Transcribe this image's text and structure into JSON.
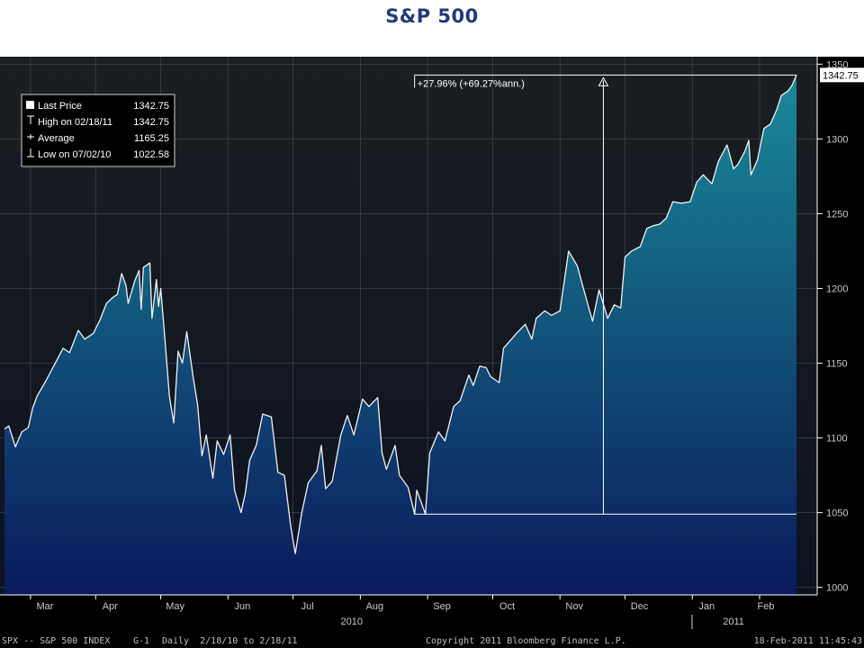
{
  "page": {
    "title": "S&P 500"
  },
  "legend": {
    "rows": [
      {
        "icon": "square-icon",
        "label": "Last Price",
        "value": "1342.75"
      },
      {
        "icon": "high-marker-icon",
        "label": "High on 02/18/11",
        "value": "1342.75"
      },
      {
        "icon": "average-marker-icon",
        "label": "Average",
        "value": "1165.25"
      },
      {
        "icon": "low-marker-icon",
        "label": "Low on 07/02/10",
        "value": "1022.58"
      }
    ]
  },
  "annotation": {
    "text": "+27.96% (+69.27%ann.)",
    "from_date": "2010-08-26",
    "to_date": "2011-02-18",
    "from_value": 1049,
    "to_value": 1342.75
  },
  "last_price_tag": "1342.75",
  "footer": {
    "left": "SPX -- S&P 500 INDEX",
    "page": "G-1",
    "range": "Daily  2/18/10 to 2/18/11",
    "copyright": "Copyright 2011 Bloomberg Finance L.P.",
    "timestamp": "18-Feb-2011 11:45:43"
  },
  "colors": {
    "bg_top": "#1b1f22",
    "bg_bottom": "#0c1220",
    "fill_top": "#198a98",
    "fill_bottom": "#0a1a5c",
    "line": "#f2f2f2",
    "grid": "#3c4148",
    "axis_text": "#c8c8c8",
    "title": "#1f3a7a"
  },
  "chart_data": {
    "type": "area",
    "title": "S&P 500",
    "xlabel": "",
    "ylabel": "",
    "xlim": [
      "2010-02-18",
      "2011-02-18"
    ],
    "ylim": [
      995,
      1355
    ],
    "y_ticks": [
      1000,
      1050,
      1100,
      1150,
      1200,
      1250,
      1300,
      1350
    ],
    "x_ticks": [
      {
        "label": "Mar",
        "date": "2010-03-02"
      },
      {
        "label": "Apr",
        "date": "2010-04-01"
      },
      {
        "label": "May",
        "date": "2010-05-01"
      },
      {
        "label": "Jun",
        "date": "2010-06-01"
      },
      {
        "label": "Jul",
        "date": "2010-07-01"
      },
      {
        "label": "Aug",
        "date": "2010-08-01"
      },
      {
        "label": "Sep",
        "date": "2010-09-01"
      },
      {
        "label": "Oct",
        "date": "2010-10-01"
      },
      {
        "label": "Nov",
        "date": "2010-11-01"
      },
      {
        "label": "Dec",
        "date": "2010-12-01"
      },
      {
        "label": "Jan",
        "date": "2011-01-01"
      },
      {
        "label": "Feb",
        "date": "2011-02-01"
      }
    ],
    "year_labels": [
      {
        "label": "2010",
        "date": "2010-07-28"
      },
      {
        "label": "2011",
        "date": "2011-01-20"
      }
    ],
    "grid": true,
    "legend_position": "top-left",
    "series": [
      {
        "name": "Last Price",
        "points": [
          [
            "2010-02-18",
            1106
          ],
          [
            "2010-02-20",
            1108
          ],
          [
            "2010-02-23",
            1094
          ],
          [
            "2010-02-26",
            1104
          ],
          [
            "2010-03-01",
            1107
          ],
          [
            "2010-03-03",
            1120
          ],
          [
            "2010-03-05",
            1128
          ],
          [
            "2010-03-09",
            1138
          ],
          [
            "2010-03-13",
            1149
          ],
          [
            "2010-03-17",
            1160
          ],
          [
            "2010-03-20",
            1157
          ],
          [
            "2010-03-24",
            1172
          ],
          [
            "2010-03-27",
            1166
          ],
          [
            "2010-03-31",
            1170
          ],
          [
            "2010-04-03",
            1179
          ],
          [
            "2010-04-06",
            1190
          ],
          [
            "2010-04-09",
            1194
          ],
          [
            "2010-04-11",
            1196
          ],
          [
            "2010-04-13",
            1210
          ],
          [
            "2010-04-15",
            1202
          ],
          [
            "2010-04-16",
            1190
          ],
          [
            "2010-04-19",
            1205
          ],
          [
            "2010-04-21",
            1212
          ],
          [
            "2010-04-22",
            1186
          ],
          [
            "2010-04-23",
            1214
          ],
          [
            "2010-04-26",
            1217
          ],
          [
            "2010-04-27",
            1180
          ],
          [
            "2010-04-29",
            1206
          ],
          [
            "2010-04-30",
            1188
          ],
          [
            "2010-05-01",
            1200
          ],
          [
            "2010-05-03",
            1165
          ],
          [
            "2010-05-05",
            1128
          ],
          [
            "2010-05-07",
            1110
          ],
          [
            "2010-05-09",
            1158
          ],
          [
            "2010-05-11",
            1150
          ],
          [
            "2010-05-13",
            1171
          ],
          [
            "2010-05-16",
            1140
          ],
          [
            "2010-05-18",
            1122
          ],
          [
            "2010-05-20",
            1088
          ],
          [
            "2010-05-22",
            1102
          ],
          [
            "2010-05-25",
            1073
          ],
          [
            "2010-05-27",
            1098
          ],
          [
            "2010-05-30",
            1089
          ],
          [
            "2010-06-02",
            1102
          ],
          [
            "2010-06-04",
            1065
          ],
          [
            "2010-06-07",
            1050
          ],
          [
            "2010-06-09",
            1063
          ],
          [
            "2010-06-11",
            1085
          ],
          [
            "2010-06-14",
            1095
          ],
          [
            "2010-06-17",
            1116
          ],
          [
            "2010-06-21",
            1114
          ],
          [
            "2010-06-24",
            1077
          ],
          [
            "2010-06-27",
            1075
          ],
          [
            "2010-06-30",
            1040
          ],
          [
            "2010-07-02",
            1022.58
          ],
          [
            "2010-07-05",
            1050
          ],
          [
            "2010-07-08",
            1070
          ],
          [
            "2010-07-12",
            1078
          ],
          [
            "2010-07-14",
            1095
          ],
          [
            "2010-07-16",
            1066
          ],
          [
            "2010-07-19",
            1071
          ],
          [
            "2010-07-23",
            1102
          ],
          [
            "2010-07-26",
            1115
          ],
          [
            "2010-07-29",
            1102
          ],
          [
            "2010-08-02",
            1126
          ],
          [
            "2010-08-05",
            1121
          ],
          [
            "2010-08-09",
            1127
          ],
          [
            "2010-08-11",
            1090
          ],
          [
            "2010-08-13",
            1079
          ],
          [
            "2010-08-17",
            1095
          ],
          [
            "2010-08-19",
            1075
          ],
          [
            "2010-08-23",
            1067
          ],
          [
            "2010-08-25",
            1055
          ],
          [
            "2010-08-26",
            1049
          ],
          [
            "2010-08-27",
            1065
          ],
          [
            "2010-08-31",
            1049
          ],
          [
            "2010-09-02",
            1090
          ],
          [
            "2010-09-06",
            1104
          ],
          [
            "2010-09-09",
            1098
          ],
          [
            "2010-09-13",
            1121
          ],
          [
            "2010-09-16",
            1125
          ],
          [
            "2010-09-20",
            1142
          ],
          [
            "2010-09-22",
            1135
          ],
          [
            "2010-09-25",
            1148
          ],
          [
            "2010-09-28",
            1147
          ],
          [
            "2010-09-30",
            1141
          ],
          [
            "2010-10-04",
            1137
          ],
          [
            "2010-10-06",
            1160
          ],
          [
            "2010-10-09",
            1165
          ],
          [
            "2010-10-12",
            1170
          ],
          [
            "2010-10-16",
            1176
          ],
          [
            "2010-10-19",
            1166
          ],
          [
            "2010-10-21",
            1180
          ],
          [
            "2010-10-25",
            1185
          ],
          [
            "2010-10-28",
            1182
          ],
          [
            "2010-11-01",
            1185
          ],
          [
            "2010-11-05",
            1225
          ],
          [
            "2010-11-09",
            1215
          ],
          [
            "2010-11-12",
            1199
          ],
          [
            "2010-11-16",
            1178
          ],
          [
            "2010-11-19",
            1199
          ],
          [
            "2010-11-23",
            1180
          ],
          [
            "2010-11-26",
            1189
          ],
          [
            "2010-11-29",
            1187
          ],
          [
            "2010-12-01",
            1221
          ],
          [
            "2010-12-04",
            1225
          ],
          [
            "2010-12-08",
            1228
          ],
          [
            "2010-12-11",
            1240
          ],
          [
            "2010-12-14",
            1242
          ],
          [
            "2010-12-17",
            1243
          ],
          [
            "2010-12-20",
            1247
          ],
          [
            "2010-12-23",
            1258
          ],
          [
            "2010-12-27",
            1257
          ],
          [
            "2010-12-31",
            1258
          ],
          [
            "2011-01-03",
            1271
          ],
          [
            "2011-01-06",
            1276
          ],
          [
            "2011-01-10",
            1270
          ],
          [
            "2011-01-13",
            1285
          ],
          [
            "2011-01-17",
            1296
          ],
          [
            "2011-01-20",
            1280
          ],
          [
            "2011-01-22",
            1283
          ],
          [
            "2011-01-25",
            1291
          ],
          [
            "2011-01-27",
            1299
          ],
          [
            "2011-01-28",
            1276
          ],
          [
            "2011-01-31",
            1286
          ],
          [
            "2011-02-03",
            1307
          ],
          [
            "2011-02-06",
            1310
          ],
          [
            "2011-02-09",
            1320
          ],
          [
            "2011-02-11",
            1329
          ],
          [
            "2011-02-14",
            1332
          ],
          [
            "2011-02-16",
            1336
          ],
          [
            "2011-02-18",
            1342.75
          ]
        ]
      }
    ]
  }
}
